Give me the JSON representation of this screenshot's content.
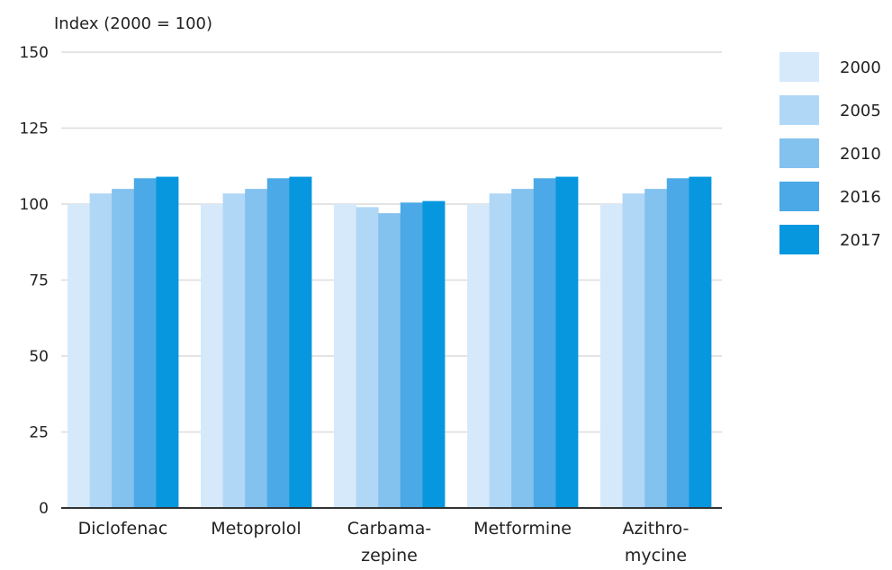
{
  "chart_data": {
    "type": "bar",
    "ylabel": "Index (2000 = 100)",
    "ylim": [
      0,
      150
    ],
    "yticks": [
      "0",
      "25",
      "50",
      "75",
      "100",
      "125",
      "150"
    ],
    "grid": true,
    "legend_position": "right",
    "categories": [
      [
        "Diclofenac"
      ],
      [
        "Metoprolol"
      ],
      [
        "Carbama-",
        "zepine"
      ],
      [
        "Metformine"
      ],
      [
        "Azithro-",
        "mycine"
      ]
    ],
    "series": [
      {
        "name": "2000",
        "color": "#d6e9fb",
        "values": [
          100,
          100,
          100,
          100,
          100
        ]
      },
      {
        "name": "2005",
        "color": "#b1d7f6",
        "values": [
          103.5,
          103.5,
          99,
          103.5,
          103.5
        ]
      },
      {
        "name": "2010",
        "color": "#83c1ef",
        "values": [
          105,
          105,
          97,
          105,
          105
        ]
      },
      {
        "name": "2016",
        "color": "#4aa9e6",
        "values": [
          108.5,
          108.5,
          100.5,
          108.5,
          108.5
        ]
      },
      {
        "name": "2017",
        "color": "#0797de",
        "values": [
          109,
          109,
          101,
          109,
          109
        ]
      }
    ]
  },
  "style": {
    "gridline_color": "#dcdcdc",
    "baseline_color": "#333333"
  }
}
